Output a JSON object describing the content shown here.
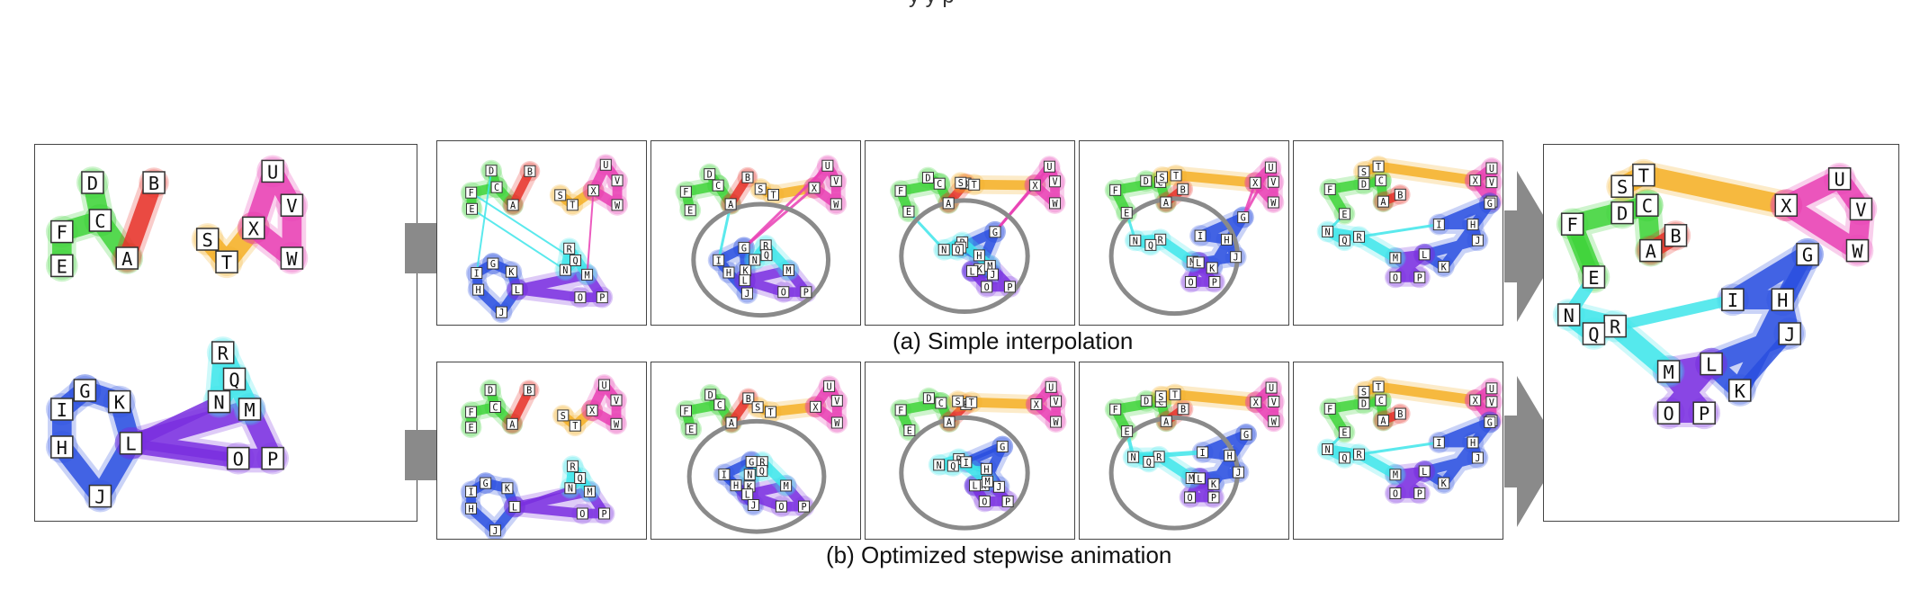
{
  "captions": {
    "top": "(a) Simple interpolation",
    "bottom": "(b) Optimized stepwise animation",
    "cut_header": "y y p"
  },
  "nodes": [
    "A",
    "B",
    "C",
    "D",
    "E",
    "F",
    "G",
    "H",
    "I",
    "J",
    "K",
    "L",
    "M",
    "N",
    "O",
    "P",
    "Q",
    "R",
    "S",
    "T",
    "U",
    "V",
    "W",
    "X"
  ],
  "groups": [
    {
      "name": "green",
      "color": "#3fd43a",
      "nodes": [
        "C",
        "D",
        "E",
        "F"
      ]
    },
    {
      "name": "red",
      "color": "#e8322a",
      "nodes": [
        "A",
        "B"
      ]
    },
    {
      "name": "orange",
      "color": "#f5b027",
      "nodes": [
        "S",
        "T",
        "X"
      ]
    },
    {
      "name": "magenta",
      "color": "#e93fb4",
      "nodes": [
        "U",
        "V",
        "W",
        "X"
      ]
    },
    {
      "name": "blue",
      "color": "#2a4fe0",
      "nodes": [
        "G",
        "H",
        "I",
        "J",
        "K",
        "L"
      ]
    },
    {
      "name": "purple",
      "color": "#7a2fe0",
      "nodes": [
        "L",
        "M",
        "O",
        "P"
      ]
    },
    {
      "name": "cyan",
      "color": "#3fe6ea",
      "nodes": [
        "M",
        "N",
        "Q",
        "R"
      ]
    }
  ],
  "colors": {
    "panel_border": "#444444",
    "arrow": "#8a8a8a",
    "highlight_ellipse": "#8a8a8a"
  }
}
